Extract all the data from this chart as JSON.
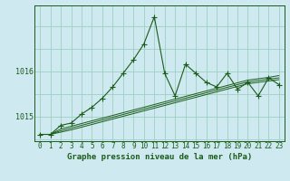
{
  "title": "Graphe pression niveau de la mer (hPa)",
  "background_color": "#cfe9f0",
  "grid_color": "#9fcfbf",
  "line_color": "#1a5c1a",
  "hours": [
    0,
    1,
    2,
    3,
    4,
    5,
    6,
    7,
    8,
    9,
    10,
    11,
    12,
    13,
    14,
    15,
    16,
    17,
    18,
    19,
    20,
    21,
    22,
    23
  ],
  "main_line": [
    1014.6,
    1014.6,
    1014.8,
    1014.85,
    1015.05,
    1015.2,
    1015.4,
    1015.65,
    1015.95,
    1016.25,
    1016.6,
    1017.2,
    1015.95,
    1015.45,
    1016.15,
    1015.95,
    1015.75,
    1015.65,
    1015.95,
    1015.6,
    1015.75,
    1015.45,
    1015.85,
    1015.7
  ],
  "trend_line1": [
    1014.6,
    1014.6,
    1014.72,
    1014.78,
    1014.84,
    1014.9,
    1014.96,
    1015.02,
    1015.08,
    1015.14,
    1015.2,
    1015.26,
    1015.32,
    1015.38,
    1015.44,
    1015.5,
    1015.56,
    1015.62,
    1015.68,
    1015.74,
    1015.8,
    1015.83,
    1015.86,
    1015.9
  ],
  "trend_line2": [
    1014.6,
    1014.6,
    1014.68,
    1014.74,
    1014.8,
    1014.86,
    1014.92,
    1014.98,
    1015.04,
    1015.1,
    1015.16,
    1015.22,
    1015.28,
    1015.34,
    1015.4,
    1015.46,
    1015.52,
    1015.58,
    1015.64,
    1015.7,
    1015.76,
    1015.79,
    1015.82,
    1015.85
  ],
  "trend_line3": [
    1014.6,
    1014.6,
    1014.65,
    1014.7,
    1014.76,
    1014.82,
    1014.88,
    1014.94,
    1015.0,
    1015.06,
    1015.12,
    1015.18,
    1015.24,
    1015.3,
    1015.36,
    1015.42,
    1015.48,
    1015.54,
    1015.6,
    1015.66,
    1015.72,
    1015.75,
    1015.78,
    1015.81
  ],
  "ylim_min": 1014.45,
  "ylim_max": 1017.45,
  "yticks": [
    1015.0,
    1016.0
  ],
  "font_color": "#1a5c1a",
  "font_size_ticks": 5.5,
  "font_size_label": 6.5
}
